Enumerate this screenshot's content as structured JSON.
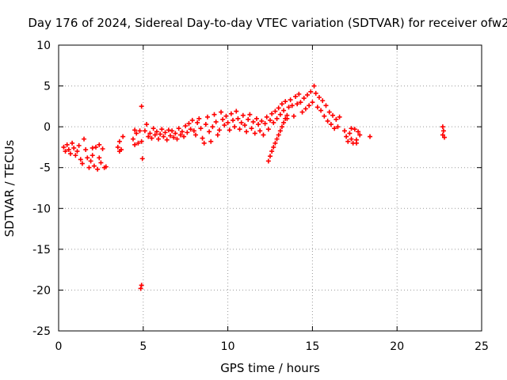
{
  "chart_data": {
    "type": "scatter",
    "title": "Day 176 of 2024, Sidereal Day-to-day VTEC variation (SDTVAR) for receiver ofw2",
    "xlabel": "GPS time / hours",
    "ylabel": "SDTVAR / TECUs",
    "xlim": [
      0,
      25
    ],
    "ylim": [
      -25,
      10
    ],
    "xticks": [
      0,
      5,
      10,
      15,
      20,
      25
    ],
    "yticks": [
      -25,
      -20,
      -15,
      -10,
      -5,
      0,
      5,
      10
    ],
    "grid": true,
    "marker": "+",
    "color": "#ff0000",
    "series": [
      {
        "name": "SDTVAR",
        "points": [
          [
            0.3,
            -2.5
          ],
          [
            0.4,
            -3.0
          ],
          [
            0.5,
            -2.2
          ],
          [
            0.6,
            -2.8
          ],
          [
            0.7,
            -3.3
          ],
          [
            0.8,
            -2.0
          ],
          [
            0.9,
            -2.6
          ],
          [
            1.0,
            -3.5
          ],
          [
            1.1,
            -3.0
          ],
          [
            1.2,
            -2.3
          ],
          [
            1.3,
            -4.0
          ],
          [
            1.4,
            -4.5
          ],
          [
            1.5,
            -1.5
          ],
          [
            1.6,
            -2.8
          ],
          [
            1.7,
            -3.8
          ],
          [
            1.8,
            -5.0
          ],
          [
            1.9,
            -4.2
          ],
          [
            2.0,
            -3.5
          ],
          [
            2.1,
            -4.8
          ],
          [
            2.2,
            -2.5
          ],
          [
            2.3,
            -5.2
          ],
          [
            2.4,
            -3.8
          ],
          [
            2.5,
            -4.4
          ],
          [
            2.6,
            -2.7
          ],
          [
            2.7,
            -5.0
          ],
          [
            2.8,
            -4.9
          ],
          [
            2.4,
            -2.2
          ],
          [
            2.0,
            -2.6
          ],
          [
            3.5,
            -2.5
          ],
          [
            3.6,
            -1.8
          ],
          [
            3.7,
            -2.8
          ],
          [
            3.8,
            -1.2
          ],
          [
            3.6,
            -3.0
          ],
          [
            4.4,
            -1.5
          ],
          [
            4.5,
            -2.2
          ],
          [
            4.6,
            -0.8
          ],
          [
            4.7,
            -2.0
          ],
          [
            4.8,
            -0.5
          ],
          [
            4.9,
            -1.8
          ],
          [
            4.5,
            -0.4
          ],
          [
            4.9,
            2.5
          ],
          [
            4.95,
            -3.9
          ],
          [
            4.9,
            -19.4
          ],
          [
            4.85,
            -19.8
          ],
          [
            5.1,
            -0.5
          ],
          [
            5.2,
            0.3
          ],
          [
            5.3,
            -1.2
          ],
          [
            5.4,
            -0.8
          ],
          [
            5.5,
            -1.4
          ],
          [
            5.6,
            -0.2
          ],
          [
            5.7,
            -1.0
          ],
          [
            5.8,
            -0.6
          ],
          [
            5.9,
            -1.5
          ],
          [
            6.0,
            -0.9
          ],
          [
            6.1,
            -0.3
          ],
          [
            6.2,
            -1.2
          ],
          [
            6.3,
            -0.7
          ],
          [
            6.4,
            -1.6
          ],
          [
            6.5,
            -0.4
          ],
          [
            6.6,
            -1.1
          ],
          [
            6.7,
            -0.5
          ],
          [
            6.8,
            -1.3
          ],
          [
            6.9,
            -0.8
          ],
          [
            7.0,
            -1.5
          ],
          [
            7.1,
            -0.2
          ],
          [
            7.2,
            -1.0
          ],
          [
            7.3,
            -0.6
          ],
          [
            7.4,
            -1.2
          ],
          [
            7.5,
            0.1
          ],
          [
            7.6,
            -0.7
          ],
          [
            7.7,
            0.4
          ],
          [
            7.8,
            -0.3
          ],
          [
            7.9,
            0.8
          ],
          [
            8.0,
            -0.5
          ],
          [
            8.1,
            -1.0
          ],
          [
            8.2,
            0.5
          ],
          [
            8.3,
            1.0
          ],
          [
            8.4,
            -0.2
          ],
          [
            8.5,
            -1.4
          ],
          [
            8.6,
            -2.0
          ],
          [
            8.7,
            0.3
          ],
          [
            8.8,
            1.2
          ],
          [
            8.9,
            -0.6
          ],
          [
            9.0,
            -1.8
          ],
          [
            9.1,
            0.0
          ],
          [
            9.2,
            1.5
          ],
          [
            9.3,
            0.6
          ],
          [
            9.4,
            -1.0
          ],
          [
            9.5,
            -0.4
          ],
          [
            9.6,
            1.8
          ],
          [
            9.7,
            0.9
          ],
          [
            9.8,
            0.2
          ],
          [
            9.9,
            1.3
          ],
          [
            10.0,
            0.5
          ],
          [
            10.1,
            -0.4
          ],
          [
            10.2,
            1.6
          ],
          [
            10.3,
            0.8
          ],
          [
            10.4,
            0.0
          ],
          [
            10.5,
            1.9
          ],
          [
            10.6,
            1.0
          ],
          [
            10.7,
            -0.3
          ],
          [
            10.8,
            0.5
          ],
          [
            10.9,
            1.4
          ],
          [
            11.0,
            0.2
          ],
          [
            11.1,
            -0.6
          ],
          [
            11.2,
            0.9
          ],
          [
            11.3,
            1.5
          ],
          [
            11.4,
            -0.2
          ],
          [
            11.5,
            0.6
          ],
          [
            11.6,
            -0.8
          ],
          [
            11.7,
            1.0
          ],
          [
            11.8,
            0.3
          ],
          [
            11.9,
            -0.5
          ],
          [
            12.0,
            0.7
          ],
          [
            12.1,
            -1.0
          ],
          [
            12.2,
            0.4
          ],
          [
            12.3,
            1.2
          ],
          [
            12.4,
            -0.3
          ],
          [
            12.5,
            0.8
          ],
          [
            12.6,
            1.6
          ],
          [
            12.7,
            0.5
          ],
          [
            12.8,
            1.9
          ],
          [
            12.9,
            1.0
          ],
          [
            13.0,
            2.3
          ],
          [
            13.1,
            1.5
          ],
          [
            13.2,
            2.8
          ],
          [
            13.3,
            2.0
          ],
          [
            13.4,
            3.1
          ],
          [
            13.5,
            1.0
          ],
          [
            13.6,
            2.4
          ],
          [
            13.7,
            3.3
          ],
          [
            13.8,
            2.6
          ],
          [
            13.9,
            1.3
          ],
          [
            14.0,
            3.7
          ],
          [
            14.1,
            2.8
          ],
          [
            14.2,
            4.0
          ],
          [
            14.3,
            3.0
          ],
          [
            14.4,
            1.8
          ],
          [
            14.5,
            3.5
          ],
          [
            14.6,
            2.2
          ],
          [
            14.7,
            3.9
          ],
          [
            14.8,
            2.6
          ],
          [
            14.9,
            4.3
          ],
          [
            15.0,
            3.0
          ],
          [
            15.1,
            5.0
          ],
          [
            15.2,
            4.1
          ],
          [
            15.3,
            2.4
          ],
          [
            15.4,
            3.6
          ],
          [
            15.5,
            2.0
          ],
          [
            15.6,
            3.2
          ],
          [
            15.7,
            1.3
          ],
          [
            15.8,
            2.6
          ],
          [
            15.9,
            0.7
          ],
          [
            16.0,
            1.8
          ],
          [
            16.1,
            0.3
          ],
          [
            16.2,
            1.4
          ],
          [
            16.3,
            -0.2
          ],
          [
            16.4,
            0.9
          ],
          [
            16.5,
            0.0
          ],
          [
            16.6,
            1.2
          ],
          [
            12.4,
            -4.2
          ],
          [
            12.5,
            -3.6
          ],
          [
            12.6,
            -3.0
          ],
          [
            12.7,
            -2.5
          ],
          [
            12.8,
            -2.0
          ],
          [
            12.9,
            -1.5
          ],
          [
            13.0,
            -1.0
          ],
          [
            13.1,
            -0.5
          ],
          [
            13.2,
            0.0
          ],
          [
            13.3,
            0.5
          ],
          [
            13.4,
            1.0
          ],
          [
            13.5,
            1.4
          ],
          [
            16.9,
            -0.5
          ],
          [
            17.0,
            -1.2
          ],
          [
            17.1,
            -1.8
          ],
          [
            17.2,
            -0.8
          ],
          [
            17.3,
            -1.5
          ],
          [
            17.4,
            -2.0
          ],
          [
            17.5,
            -0.3
          ],
          [
            17.6,
            -1.6
          ],
          [
            17.7,
            -0.6
          ],
          [
            17.8,
            -1.0
          ],
          [
            17.6,
            -2.0
          ],
          [
            17.3,
            -0.2
          ],
          [
            18.4,
            -1.2
          ],
          [
            22.7,
            0.0
          ],
          [
            22.75,
            -0.5
          ],
          [
            22.8,
            -1.3
          ],
          [
            22.7,
            -1.0
          ]
        ]
      }
    ]
  }
}
